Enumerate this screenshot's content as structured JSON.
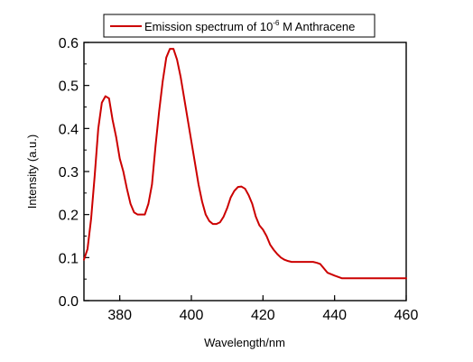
{
  "chart_data": {
    "type": "line",
    "title": "",
    "xlabel": "Wavelength/nm",
    "ylabel": "Intensity (a.u.)",
    "xlim": [
      370,
      460
    ],
    "ylim": [
      0.0,
      0.6
    ],
    "x_ticks": [
      "380",
      "400",
      "420",
      "440",
      "460"
    ],
    "y_ticks": [
      "0.0",
      "0.1",
      "0.2",
      "0.3",
      "0.4",
      "0.5",
      "0.6"
    ],
    "grid": false,
    "legend_position": "top",
    "legend": {
      "prefix": "Emission spectrum of 10",
      "superscript": "-6",
      "suffix": " M Anthracene"
    },
    "series": [
      {
        "name": "Emission spectrum of 10-6 M Anthracene",
        "color": "#cc0000",
        "x": [
          370,
          371,
          372,
          373,
          374,
          375,
          376,
          377,
          378,
          379,
          380,
          381,
          382,
          383,
          384,
          385,
          386,
          387,
          388,
          389,
          390,
          391,
          392,
          393,
          394,
          395,
          396,
          397,
          398,
          399,
          400,
          401,
          402,
          403,
          404,
          405,
          406,
          407,
          408,
          409,
          410,
          411,
          412,
          413,
          414,
          415,
          416,
          417,
          418,
          419,
          420,
          421,
          422,
          423,
          424,
          425,
          426,
          427,
          428,
          429,
          430,
          431,
          432,
          433,
          434,
          435,
          436,
          437,
          438,
          440,
          442,
          444,
          446,
          448,
          450,
          452,
          454,
          456,
          458,
          460
        ],
        "values": [
          0.095,
          0.12,
          0.19,
          0.29,
          0.4,
          0.46,
          0.475,
          0.47,
          0.42,
          0.38,
          0.33,
          0.3,
          0.26,
          0.225,
          0.205,
          0.2,
          0.2,
          0.2,
          0.225,
          0.27,
          0.36,
          0.44,
          0.51,
          0.565,
          0.585,
          0.585,
          0.56,
          0.52,
          0.47,
          0.42,
          0.37,
          0.32,
          0.27,
          0.23,
          0.2,
          0.185,
          0.178,
          0.178,
          0.182,
          0.195,
          0.215,
          0.24,
          0.255,
          0.264,
          0.265,
          0.26,
          0.245,
          0.225,
          0.195,
          0.175,
          0.165,
          0.15,
          0.13,
          0.118,
          0.108,
          0.1,
          0.095,
          0.092,
          0.09,
          0.09,
          0.09,
          0.09,
          0.09,
          0.09,
          0.09,
          0.088,
          0.085,
          0.075,
          0.065,
          0.058,
          0.052,
          0.052,
          0.052,
          0.052,
          0.052,
          0.052,
          0.052,
          0.052,
          0.052,
          0.052
        ]
      }
    ]
  }
}
